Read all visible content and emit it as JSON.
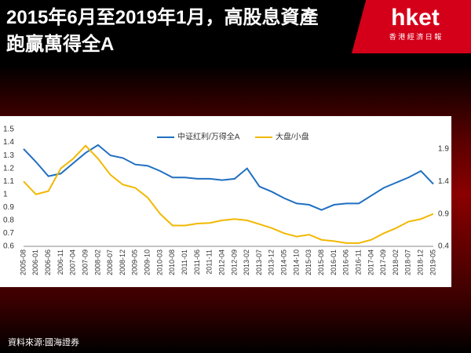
{
  "header": {
    "title": "2015年6月至2019年1月，高股息資產跑贏萬得全A"
  },
  "logo": {
    "name": "hket",
    "tagline": "香 港 經 濟 日 報"
  },
  "source": "資料來源:國海證券",
  "chart_data": {
    "type": "line",
    "categories": [
      "2005-08",
      "2006-01",
      "2006-06",
      "2006-11",
      "2007-04",
      "2007-09",
      "2008-02",
      "2008-07",
      "2008-12",
      "2009-05",
      "2009-10",
      "2010-03",
      "2010-08",
      "2011-01",
      "2011-06",
      "2011-11",
      "2012-04",
      "2012-09",
      "2013-02",
      "2013-07",
      "2013-12",
      "2014-05",
      "2014-10",
      "2015-03",
      "2015-08",
      "2016-01",
      "2016-06",
      "2016-11",
      "2017-04",
      "2017-09",
      "2018-02",
      "2018-07",
      "2018-12",
      "2019-05"
    ],
    "series": [
      {
        "name": "中证红利/万得全A",
        "color": "#1f6fc0",
        "axis": "y",
        "values": [
          1.35,
          1.25,
          1.14,
          1.16,
          1.24,
          1.32,
          1.38,
          1.3,
          1.28,
          1.23,
          1.22,
          1.18,
          1.13,
          1.13,
          1.12,
          1.12,
          1.11,
          1.12,
          1.2,
          1.06,
          1.02,
          0.97,
          0.93,
          0.92,
          0.88,
          0.92,
          0.93,
          0.93,
          0.99,
          1.05,
          1.09,
          1.13,
          1.18,
          1.08
        ]
      },
      {
        "name": "大盘/小盘",
        "color": "#f2b800",
        "axis": "y2",
        "values": [
          1.4,
          1.2,
          1.25,
          1.6,
          1.75,
          1.95,
          1.75,
          1.5,
          1.35,
          1.3,
          1.15,
          0.9,
          0.72,
          0.72,
          0.75,
          0.76,
          0.8,
          0.82,
          0.8,
          0.74,
          0.68,
          0.6,
          0.55,
          0.58,
          0.5,
          0.48,
          0.45,
          0.45,
          0.5,
          0.6,
          0.68,
          0.78,
          0.82,
          0.9
        ]
      }
    ],
    "ylim": [
      0.6,
      1.5
    ],
    "yticks": [
      0.6,
      0.7,
      0.8,
      0.9,
      1,
      1.1,
      1.2,
      1.3,
      1.4,
      1.5
    ],
    "y2lim": [
      0.4,
      2.2
    ],
    "y2ticks": [
      0.4,
      0.9,
      1.4,
      1.9
    ],
    "legend": "top"
  }
}
